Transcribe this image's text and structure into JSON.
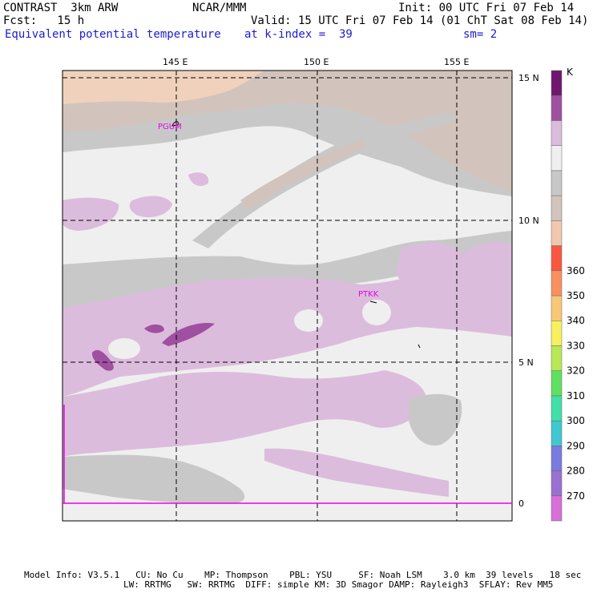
{
  "header": {
    "model": "CONTRAST  3km ARW",
    "org": "NCAR/MMM",
    "init": "Init: 00 UTC Fri 07 Feb 14",
    "fcst": "Fcst:   15 h",
    "valid": "Valid: 15 UTC Fri 07 Feb 14 (01 ChT Sat 08 Feb 14)",
    "field": "Equivalent potential temperature",
    "level": "at k-index =  39",
    "smoothing": "sm= 2"
  },
  "map": {
    "lon_labels": [
      "145 E",
      "150 E",
      "155 E"
    ],
    "lat_labels": [
      "15 N",
      "10 N",
      "5 N",
      "0"
    ],
    "stations": [
      "PGUM",
      "PTKK"
    ]
  },
  "colorbar": {
    "unit": "K",
    "ticks": [
      "270",
      "280",
      "290",
      "300",
      "310",
      "320",
      "330",
      "340",
      "350",
      "360"
    ],
    "colors": [
      "#d870d8",
      "#9a70d0",
      "#7a7ae0",
      "#40c8d0",
      "#40e0a8",
      "#60e060",
      "#b8e858",
      "#f8f060",
      "#f8c878",
      "#f89060",
      "#f85840",
      "#f0c8b0",
      "#d2c4bc",
      "#c8c8c8",
      "#efefef",
      "#dcbcdc",
      "#a050a0",
      "#701870"
    ]
  },
  "colors": {
    "sea_bg": "#efefef",
    "grey": "#c8c8c8",
    "tan": "#d2c4bc",
    "peach": "#f0d2bc",
    "light_purple": "#dcbcdc",
    "dark_purple": "#a050a0",
    "station": "#e800e8"
  },
  "footer": {
    "line1": "Model Info: V3.5.1   CU: No Cu    MP: Thompson    PBL: YSU     SF: Noah LSM    3.0 km  39 levels   18 sec",
    "line2": "LW: RRTMG   SW: RRTMG  DIFF: simple KM: 3D Smagor DAMP: Rayleigh3  SFLAY: Rev MM5"
  }
}
